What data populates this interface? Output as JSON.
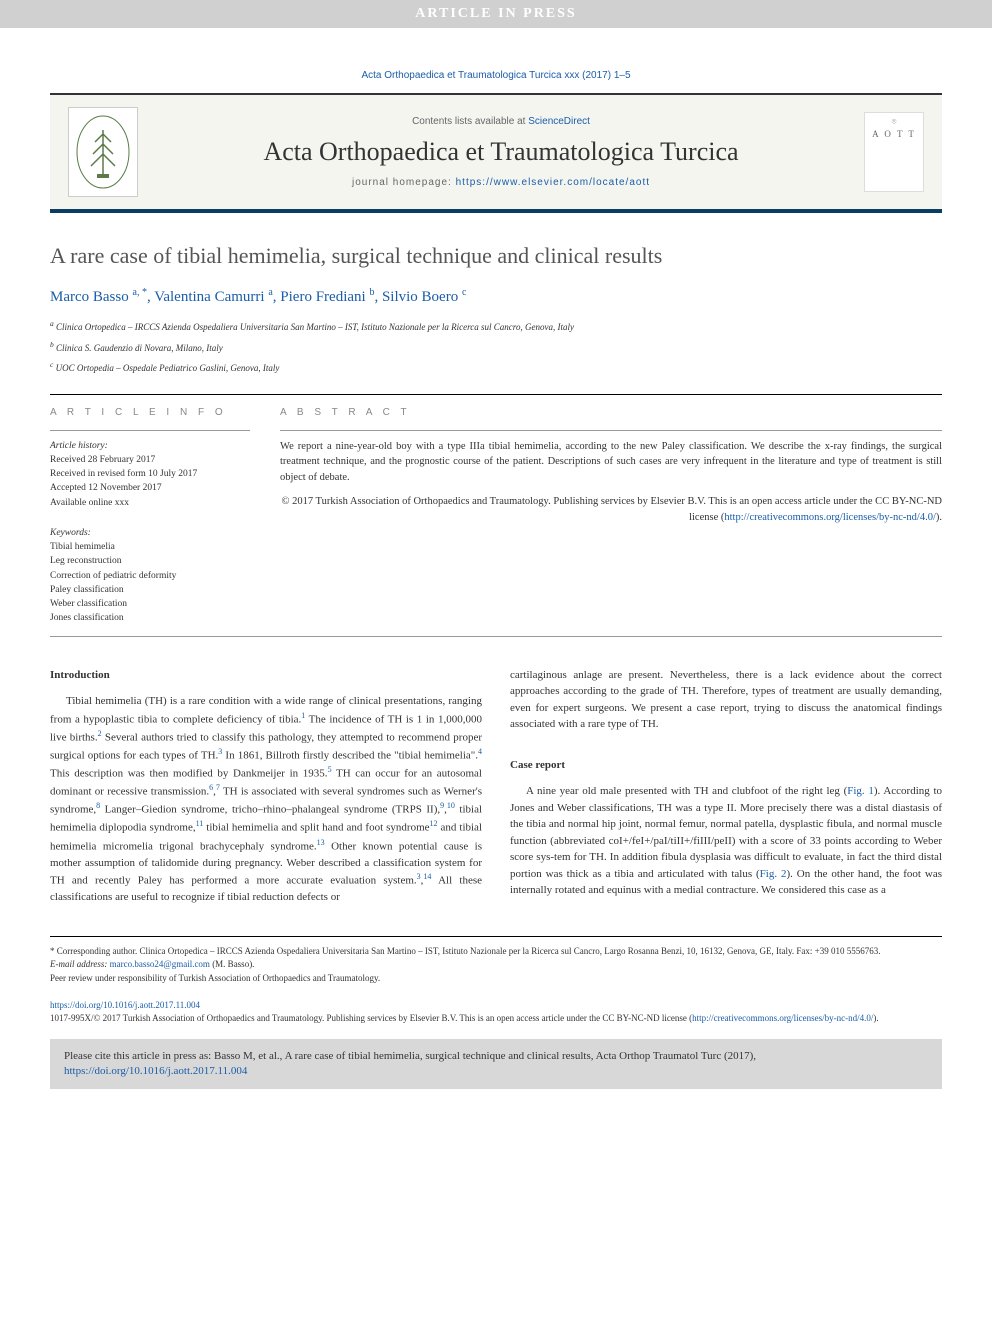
{
  "banner": "ARTICLE IN PRESS",
  "citation_top": "Acta Orthopaedica et Traumatologica Turcica xxx (2017) 1–5",
  "header": {
    "contents_prefix": "Contents lists available at ",
    "contents_link": "ScienceDirect",
    "journal_name": "Acta Orthopaedica et Traumatologica Turcica",
    "homepage_prefix": "journal homepage: ",
    "homepage_url": "https://www.elsevier.com/locate/aott",
    "cover_abbrev": "A O T T"
  },
  "title": "A rare case of tibial hemimelia, surgical technique and clinical results",
  "authors": [
    {
      "name": "Marco Basso",
      "sup": "a, *"
    },
    {
      "name": "Valentina Camurri",
      "sup": "a"
    },
    {
      "name": "Piero Frediani",
      "sup": "b"
    },
    {
      "name": "Silvio Boero",
      "sup": "c"
    }
  ],
  "affils": [
    {
      "sup": "a",
      "text": "Clinica Ortopedica – IRCCS Azienda Ospedaliera Universitaria San Martino – IST, Istituto Nazionale per la Ricerca sul Cancro, Genova, Italy"
    },
    {
      "sup": "b",
      "text": "Clinica S. Gaudenzio di Novara, Milano, Italy"
    },
    {
      "sup": "c",
      "text": "UOC Ortopedia – Ospedale Pediatrico Gaslini, Genova, Italy"
    }
  ],
  "info": {
    "label": "A R T I C L E   I N F O",
    "history_label": "Article history:",
    "received": "Received 28 February 2017",
    "revised": "Received in revised form 10 July 2017",
    "accepted": "Accepted 12 November 2017",
    "online": "Available online xxx",
    "keywords_label": "Keywords:",
    "keywords": [
      "Tibial hemimelia",
      "Leg reconstruction",
      "Correction of pediatric deformity",
      "Paley classification",
      "Weber classification",
      "Jones classification"
    ]
  },
  "abstract": {
    "label": "A B S T R A C T",
    "text": "We report a nine-year-old boy with a type IIIa tibial hemimelia, according to the new Paley classification. We describe the x-ray findings, the surgical treatment technique, and the prognostic course of the patient. Descriptions of such cases are very infrequent in the literature and type of treatment is still object of debate.",
    "copyright": "© 2017 Turkish Association of Orthopaedics and Traumatology. Publishing services by Elsevier B.V. This is an open access article under the CC BY-NC-ND license (",
    "license_url": "http://creativecommons.org/licenses/by-nc-nd/4.0/",
    "copyright_close": ")."
  },
  "body": {
    "intro_heading": "Introduction",
    "intro_text": "Tibial hemimelia (TH) is a rare condition with a wide range of clinical presentations, ranging from a hypoplastic tibia to complete deficiency of tibia.¹ The incidence of TH is 1 in 1,000,000 live births.² Several authors tried to classify this pathology, they attempted to recommend proper surgical options for each types of TH.³ In 1861, Billroth firstly described the \"tibial hemimelia\".⁴ This description was then modified by Dankmeijer in 1935.⁵ TH can occur for an autosomal dominant or recessive transmission.⁶,⁷ TH is associated with several syndromes such as Werner's syndrome,⁸ Langer–Giedion syndrome, tricho–rhino–phalangeal syndrome (TRPS II),⁹,¹⁰ tibial hemimelia diplopodia syndrome,¹¹ tibial hemimelia and split hand and foot syndrome¹² and tibial hemimelia micromelia trigonal brachycephaly syndrome.¹³ Other known potential cause is mother assumption of talidomide during pregnancy. Weber described a classification system for TH and recently Paley has performed a more accurate evaluation system.³,¹⁴ All these classifications are useful to recognize if tibial reduction defects or",
    "col2_para1": "cartilaginous anlage are present. Nevertheless, there is a lack evidence about the correct approaches according to the grade of TH. Therefore, types of treatment are usually demanding, even for expert surgeons. We present a case report, trying to discuss the anatomical findings associated with a rare type of TH.",
    "case_heading": "Case report",
    "case_text_1": "A nine year old male presented with TH and clubfoot of the right leg (",
    "fig1": "Fig. 1",
    "case_text_2": "). According to Jones and Weber classifications, TH was a type II. More precisely there was a distal diastasis of the tibia and normal hip joint, normal femur, normal patella, dysplastic fibula, and normal muscle function (abbreviated coI+/feI+/paI/tiII+/fiIII/peII) with a score of 33 points according to Weber score sys-tem for TH. In addition fibula dysplasia was difficult to evaluate, in fact the third distal portion was thick as a tibia and articulated with talus (",
    "fig2": "Fig. 2",
    "case_text_3": "). On the other hand, the foot was internally rotated and equinus with a medial contracture. We considered this case as a"
  },
  "footnotes": {
    "corresponding": "* Corresponding author. Clinica Ortopedica – IRCCS Azienda Ospedaliera Universitaria San Martino – IST, Istituto Nazionale per la Ricerca sul Cancro, Largo Rosanna Benzi, 10, 16132, Genova, GE, Italy. Fax: +39 010 5556763.",
    "email_label": "E-mail address: ",
    "email": "marco.basso24@gmail.com",
    "email_author": " (M. Basso).",
    "peer": "Peer review under responsibility of Turkish Association of Orthopaedics and Traumatology."
  },
  "doi": {
    "url": "https://doi.org/10.1016/j.aott.2017.11.004",
    "issn_line": "1017-995X/© 2017 Turkish Association of Orthopaedics and Traumatology. Publishing services by Elsevier B.V. This is an open access article under the CC BY-NC-ND license (",
    "license_url": "http://creativecommons.org/licenses/by-nc-nd/4.0/",
    "close": ")."
  },
  "cite_box": {
    "text": "Please cite this article in press as: Basso M, et al., A rare case of tibial hemimelia, surgical technique and clinical results, Acta Orthop Traumatol Turc (2017), ",
    "url": "https://doi.org/10.1016/j.aott.2017.11.004"
  },
  "colors": {
    "link": "#1a5da8",
    "banner_bg": "#d0d0d0",
    "header_bg": "#f5f5f0",
    "border_dark": "#0a3d62",
    "cite_bg": "#d8d8d8"
  }
}
